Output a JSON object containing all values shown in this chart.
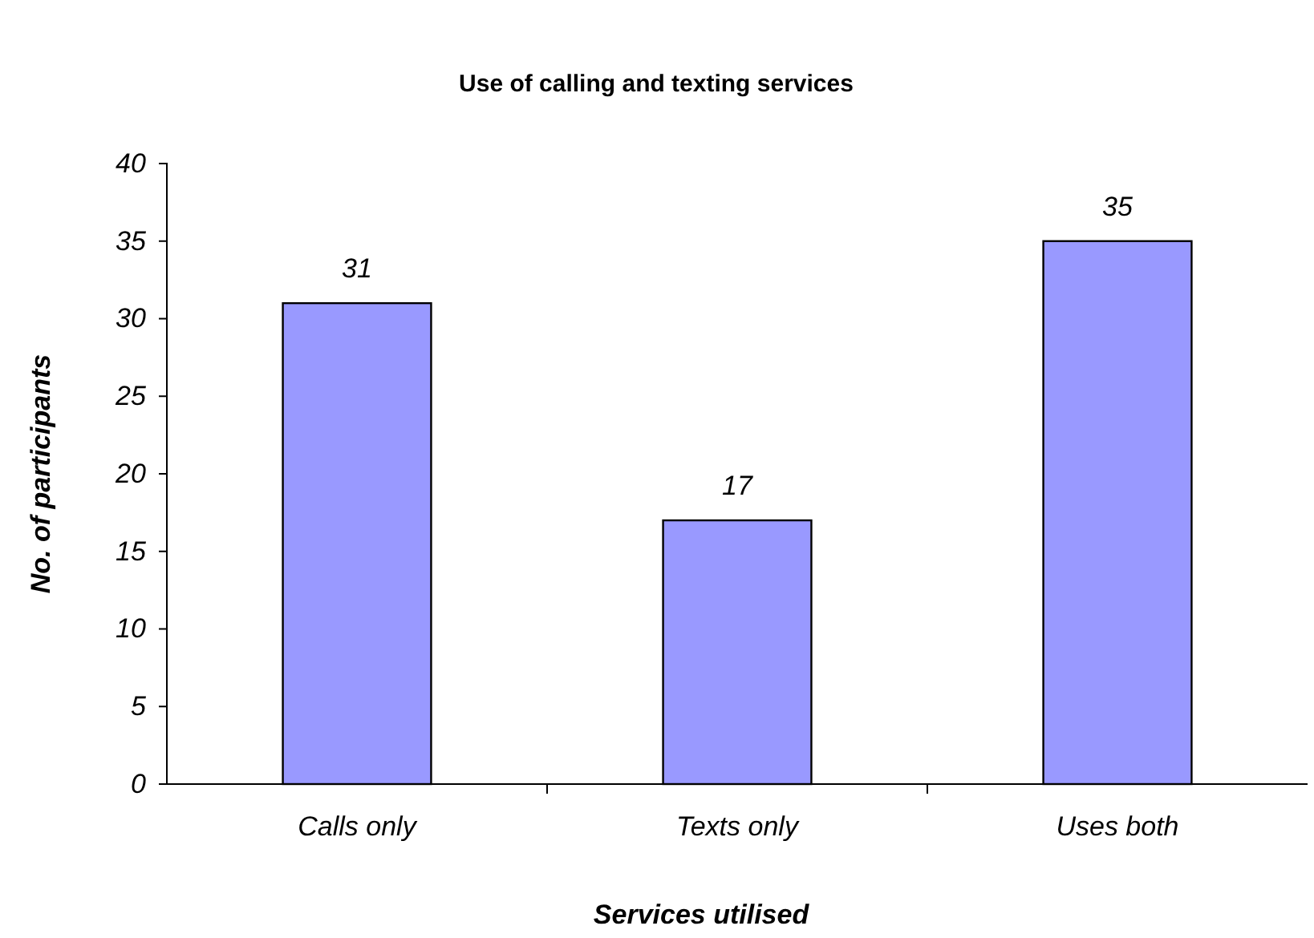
{
  "chart_data": {
    "type": "bar",
    "title": "Use of calling and texting services",
    "xlabel": "Services utilised",
    "ylabel": "No. of participants",
    "categories": [
      "Calls only",
      "Texts only",
      "Uses both"
    ],
    "values": [
      31,
      17,
      35
    ],
    "color": "#9999ff",
    "ylim": [
      0,
      40
    ],
    "yticks": [
      0,
      5,
      10,
      15,
      20,
      25,
      30,
      35,
      40
    ],
    "grid": false,
    "data_labels": true
  }
}
